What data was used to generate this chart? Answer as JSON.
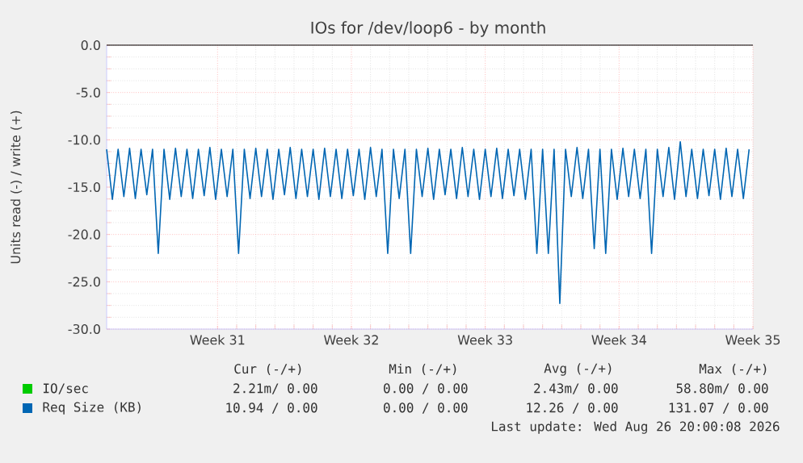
{
  "chart_data": {
    "type": "line",
    "title": "IOs for /dev/loop6 - by month",
    "ylabel": "Units read (-) / write (+)",
    "xlim": [
      "2026-07-21T04:48",
      "2026-08-24T00:00"
    ],
    "xticks": [
      {
        "value": "2026-07-27",
        "label": "Week 31"
      },
      {
        "value": "2026-08-03",
        "label": "Week 32"
      },
      {
        "value": "2026-08-10",
        "label": "Week 33"
      },
      {
        "value": "2026-08-17",
        "label": "Week 34"
      },
      {
        "value": "2026-08-24",
        "label": "Week 35"
      }
    ],
    "ylim": [
      -30,
      0
    ],
    "yticks": [
      {
        "value": -30,
        "label": "-30.0"
      },
      {
        "value": -25,
        "label": "-25.0"
      },
      {
        "value": -20,
        "label": "-20.0"
      },
      {
        "value": -15,
        "label": "-15.0"
      },
      {
        "value": -10,
        "label": "-10.0"
      },
      {
        "value": -5,
        "label": "-5.0"
      },
      {
        "value": 0,
        "label": "0.0"
      }
    ],
    "grid": true,
    "legend": "bottom",
    "ref_lines": [
      {
        "axis": "y",
        "value": 0,
        "color": "#000000"
      }
    ],
    "series": [
      {
        "name": "IO/sec",
        "color": "#00cc00"
      },
      {
        "name": "Req Size (KB)",
        "color": "#0066b3",
        "x": [
          "2026-07-21T04:48",
          "2026-07-21T12:00",
          "2026-07-21T19:12",
          "2026-07-22T02:24",
          "2026-07-22T09:36",
          "2026-07-22T16:48",
          "2026-07-23T00:00",
          "2026-07-23T07:12",
          "2026-07-23T14:24",
          "2026-07-23T21:36",
          "2026-07-24T04:48",
          "2026-07-24T12:00",
          "2026-07-24T19:12",
          "2026-07-25T02:24",
          "2026-07-25T09:36",
          "2026-07-25T16:48",
          "2026-07-26T00:00",
          "2026-07-26T07:12",
          "2026-07-26T14:24",
          "2026-07-26T21:36",
          "2026-07-27T04:48",
          "2026-07-27T12:00",
          "2026-07-27T19:12",
          "2026-07-28T02:24",
          "2026-07-28T09:36",
          "2026-07-28T16:48",
          "2026-07-29T00:00",
          "2026-07-29T07:12",
          "2026-07-29T14:24",
          "2026-07-29T21:36",
          "2026-07-30T04:48",
          "2026-07-30T12:00",
          "2026-07-30T19:12",
          "2026-07-31T02:24",
          "2026-07-31T09:36",
          "2026-07-31T16:48",
          "2026-08-01T00:00",
          "2026-08-01T07:12",
          "2026-08-01T14:24",
          "2026-08-01T21:36",
          "2026-08-02T04:48",
          "2026-08-02T12:00",
          "2026-08-02T19:12",
          "2026-08-03T02:24",
          "2026-08-03T09:36",
          "2026-08-03T16:48",
          "2026-08-04T00:00",
          "2026-08-04T07:12",
          "2026-08-04T14:24",
          "2026-08-04T21:36",
          "2026-08-05T04:48",
          "2026-08-05T12:00",
          "2026-08-05T19:12",
          "2026-08-06T02:24",
          "2026-08-06T09:36",
          "2026-08-06T16:48",
          "2026-08-07T00:00",
          "2026-08-07T07:12",
          "2026-08-07T14:24",
          "2026-08-07T21:36",
          "2026-08-08T04:48",
          "2026-08-08T12:00",
          "2026-08-08T19:12",
          "2026-08-09T02:24",
          "2026-08-09T09:36",
          "2026-08-09T16:48",
          "2026-08-10T00:00",
          "2026-08-10T07:12",
          "2026-08-10T14:24",
          "2026-08-10T21:36",
          "2026-08-11T04:48",
          "2026-08-11T12:00",
          "2026-08-11T19:12",
          "2026-08-12T02:24",
          "2026-08-12T09:36",
          "2026-08-12T16:48",
          "2026-08-13T00:00",
          "2026-08-13T07:12",
          "2026-08-13T14:24",
          "2026-08-13T21:36",
          "2026-08-14T04:48",
          "2026-08-14T12:00",
          "2026-08-14T19:12",
          "2026-08-15T02:24",
          "2026-08-15T09:36",
          "2026-08-15T16:48",
          "2026-08-16T00:00",
          "2026-08-16T07:12",
          "2026-08-16T14:24",
          "2026-08-16T21:36",
          "2026-08-17T04:48",
          "2026-08-17T12:00",
          "2026-08-17T19:12",
          "2026-08-18T02:24",
          "2026-08-18T09:36",
          "2026-08-18T16:48",
          "2026-08-19T00:00",
          "2026-08-19T07:12",
          "2026-08-19T14:24",
          "2026-08-19T21:36",
          "2026-08-20T04:48",
          "2026-08-20T12:00",
          "2026-08-20T19:12",
          "2026-08-21T02:24",
          "2026-08-21T09:36",
          "2026-08-21T16:48",
          "2026-08-22T00:00",
          "2026-08-22T07:12",
          "2026-08-22T14:24",
          "2026-08-22T21:36",
          "2026-08-23T04:48",
          "2026-08-23T12:00",
          "2026-08-23T19:12"
        ],
        "values": [
          -11,
          -16.3,
          -11,
          -16,
          -10.9,
          -16.2,
          -11,
          -15.8,
          -11,
          -22,
          -11,
          -16.3,
          -10.9,
          -16,
          -11,
          -16.2,
          -11,
          -15.9,
          -10.8,
          -16.3,
          -11,
          -16,
          -11,
          -22,
          -11,
          -16.2,
          -10.9,
          -16,
          -11,
          -16.3,
          -11,
          -15.8,
          -10.8,
          -16.2,
          -11,
          -16,
          -11,
          -16.3,
          -10.9,
          -16,
          -11,
          -16.2,
          -11,
          -15.9,
          -11,
          -16.3,
          -10.8,
          -16,
          -11,
          -22,
          -11,
          -16.2,
          -11,
          -22,
          -11,
          -16,
          -10.9,
          -16.3,
          -11,
          -15.8,
          -11,
          -16.2,
          -10.8,
          -16,
          -11,
          -16.3,
          -11,
          -16,
          -10.9,
          -16.2,
          -11,
          -15.9,
          -11,
          -16.3,
          -11,
          -22,
          -11,
          -22,
          -11,
          -27.3,
          -11,
          -16,
          -10.8,
          -16.2,
          -11,
          -21.5,
          -11,
          -22,
          -11,
          -16.3,
          -10.9,
          -16,
          -11,
          -16.2,
          -11,
          -22,
          -11,
          -16,
          -10.8,
          -16.3,
          -10.2,
          -16,
          -11,
          -16.2,
          -11,
          -15.9,
          -11,
          -16.3,
          -10.9,
          -16,
          -11,
          -16.2,
          -11
        ]
      }
    ],
    "annotations": [
      "Cur (-/+)",
      "Min (-/+)",
      "Avg (-/+)",
      "Max (-/+)",
      "2.21m/ 0.00",
      "0.00 / 0.00",
      "2.43m/ 0.00",
      "58.80m/ 0.00",
      "10.94 / 0.00",
      "0.00 / 0.00",
      "12.26 / 0.00",
      "131.07 / 0.00",
      "Last update: Wed Aug 26 20:00:08 2026"
    ]
  }
}
